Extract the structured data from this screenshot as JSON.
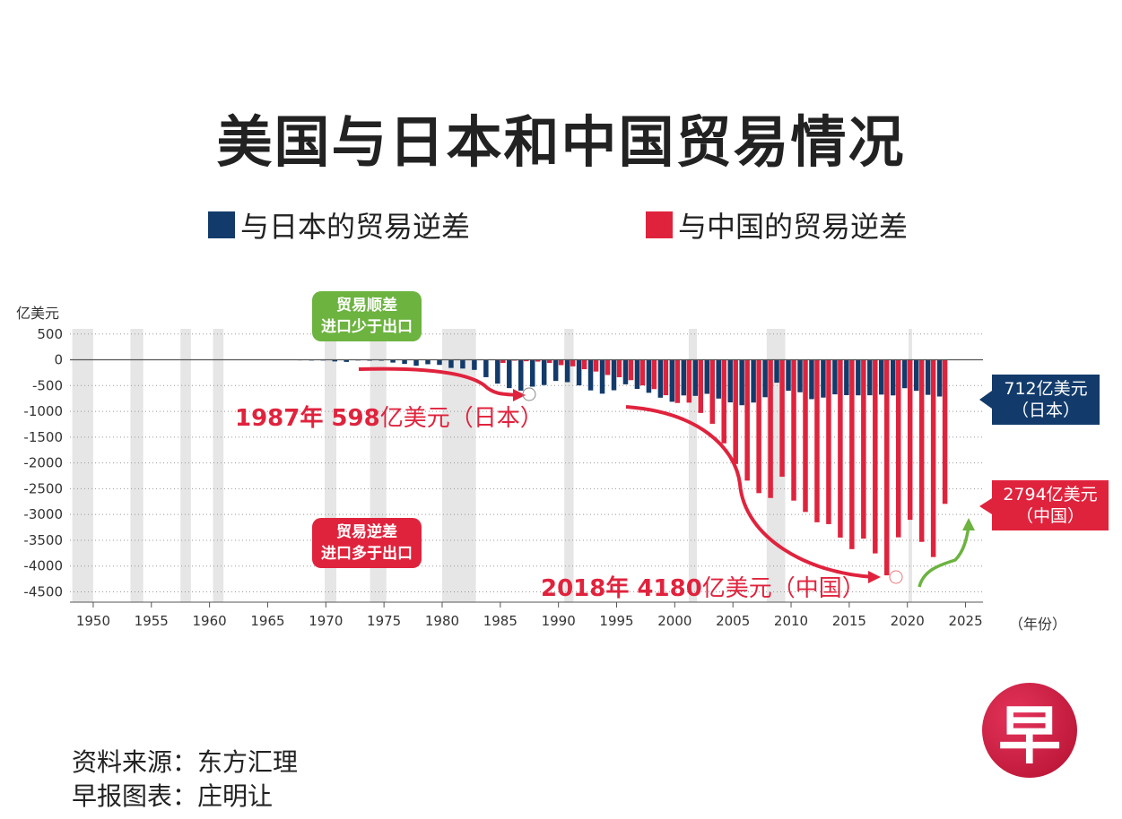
{
  "title": "美国与日本和中国贸易情况",
  "legend": [
    {
      "label": "与日本的贸易逆差",
      "color": "#123b6b"
    },
    {
      "label": "与中国的贸易逆差",
      "color": "#e0233d"
    }
  ],
  "boxes": {
    "surplus_l1": "贸易顺差",
    "surplus_l2": "进口少于出口",
    "deficit_l1": "贸易逆差",
    "deficit_l2": "进口多于出口"
  },
  "annotations": {
    "japan_peak_bold": "1987年 598",
    "japan_peak_rest": "亿美元（日本）",
    "china_peak_bold": "2018年 4180",
    "china_peak_rest": "亿美元（中国）"
  },
  "callouts": {
    "japan_value": "712亿美元",
    "japan_name": "（日本）",
    "china_value": "2794亿美元",
    "china_name": "（中国）"
  },
  "source": "资料来源：东方汇理",
  "credit": "早报图表：庄明让",
  "logo": "早",
  "chart_data": {
    "type": "bar",
    "title": "美国与日本和中国贸易情况",
    "ylabel": "亿美元",
    "xlabel": "（年份）",
    "ylim": [
      -4700,
      600
    ],
    "yticks": [
      500,
      0,
      -500,
      -1000,
      -1500,
      -2000,
      -2500,
      -3000,
      -3500,
      -4000,
      -4500
    ],
    "xticks": [
      1950,
      1955,
      1960,
      1965,
      1970,
      1975,
      1980,
      1985,
      1990,
      1995,
      2000,
      2005,
      2010,
      2015,
      2020,
      2025
    ],
    "xlim": [
      1948,
      2026.5
    ],
    "grid": true,
    "recession_bands": [
      [
        1948.2,
        1950
      ],
      [
        1953.2,
        1954.3
      ],
      [
        1957.5,
        1958.4
      ],
      [
        1960.3,
        1961.2
      ],
      [
        1969.9,
        1970.9
      ],
      [
        1973.8,
        1975.2
      ],
      [
        1980,
        1982.9
      ],
      [
        1990.5,
        1991.3
      ],
      [
        2001.2,
        2001.9
      ],
      [
        2007.9,
        2009.5
      ],
      [
        2020.1,
        2020.4
      ]
    ],
    "series": [
      {
        "name": "与日本的贸易逆差",
        "years": [
          1968,
          1969,
          1970,
          1971,
          1972,
          1973,
          1974,
          1975,
          1976,
          1977,
          1978,
          1979,
          1980,
          1981,
          1982,
          1983,
          1984,
          1985,
          1986,
          1987,
          1988,
          1989,
          1990,
          1991,
          1992,
          1993,
          1994,
          1995,
          1996,
          1997,
          1998,
          1999,
          2000,
          2001,
          2002,
          2003,
          2004,
          2005,
          2006,
          2007,
          2008,
          2009,
          2010,
          2011,
          2012,
          2013,
          2014,
          2015,
          2016,
          2017,
          2018,
          2019,
          2020,
          2021,
          2022,
          2023
        ],
        "values": [
          -10,
          -14,
          -14,
          -32,
          -41,
          -13,
          -17,
          -17,
          -54,
          -80,
          -116,
          -86,
          -99,
          -158,
          -170,
          -196,
          -337,
          -462,
          -549,
          -598,
          -521,
          -490,
          -410,
          -434,
          -496,
          -594,
          -657,
          -591,
          -476,
          -564,
          -640,
          -735,
          -814,
          -691,
          -700,
          -660,
          -752,
          -826,
          -881,
          -829,
          -726,
          -444,
          -601,
          -630,
          -763,
          -733,
          -670,
          -686,
          -689,
          -688,
          -675,
          -691,
          -551,
          -602,
          -680,
          -712
        ]
      },
      {
        "name": "与中国的贸易逆差",
        "years": [
          1985,
          1986,
          1987,
          1988,
          1989,
          1990,
          1991,
          1992,
          1993,
          1994,
          1995,
          1996,
          1997,
          1998,
          1999,
          2000,
          2001,
          2002,
          2003,
          2004,
          2005,
          2006,
          2007,
          2008,
          2009,
          2010,
          2011,
          2012,
          2013,
          2014,
          2015,
          2016,
          2017,
          2018,
          2019,
          2020,
          2021,
          2022,
          2023
        ],
        "values": [
          -60,
          -17,
          -28,
          -35,
          -62,
          -104,
          -127,
          -183,
          -228,
          -295,
          -338,
          -395,
          -497,
          -569,
          -687,
          -838,
          -831,
          -1031,
          -1241,
          -1620,
          -2021,
          -2343,
          -2586,
          -2680,
          -2268,
          -2731,
          -2951,
          -3151,
          -3187,
          -3448,
          -3672,
          -3468,
          -3755,
          -4180,
          -3443,
          -3103,
          -3531,
          -3825,
          -2794
        ]
      }
    ]
  }
}
